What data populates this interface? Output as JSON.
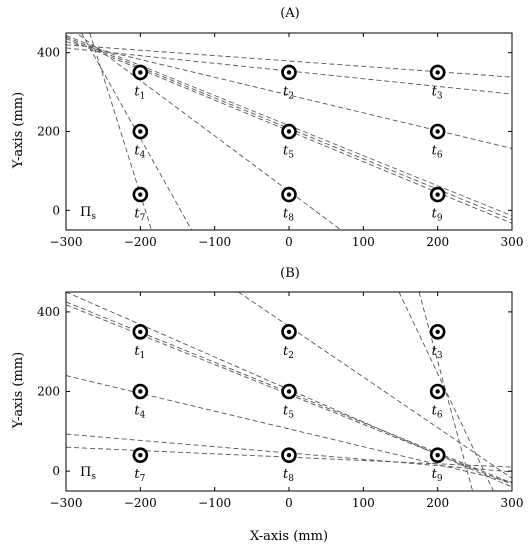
{
  "chart_data": [
    {
      "type": "line",
      "title": "(A)",
      "xlabel": "",
      "ylabel": "Y-axis (mm)",
      "xlim": [
        -300,
        300
      ],
      "ylim": [
        -50,
        450
      ],
      "xticks": [
        -300,
        -200,
        -100,
        0,
        100,
        200,
        300
      ],
      "yticks": [
        0,
        200,
        400
      ],
      "xtick_labels": [
        "−300",
        "−200",
        "−100",
        "0",
        "100",
        "200",
        "300"
      ],
      "ytick_labels": [
        "0",
        "200",
        "400"
      ],
      "show_xtick_labels": true,
      "plane_label": "Π",
      "plane_sub": "s",
      "targets": [
        {
          "base": "t",
          "sub": "1",
          "x": -200,
          "y": 350
        },
        {
          "base": "t",
          "sub": "2",
          "x": 0,
          "y": 350
        },
        {
          "base": "t",
          "sub": "3",
          "x": 200,
          "y": 350
        },
        {
          "base": "t",
          "sub": "4",
          "x": -200,
          "y": 200
        },
        {
          "base": "t",
          "sub": "5",
          "x": 0,
          "y": 200
        },
        {
          "base": "t",
          "sub": "6",
          "x": 200,
          "y": 200
        },
        {
          "base": "t",
          "sub": "7",
          "x": -200,
          "y": 40
        },
        {
          "base": "t",
          "sub": "8",
          "x": 0,
          "y": 40
        },
        {
          "base": "t",
          "sub": "9",
          "x": 200,
          "y": 40
        }
      ],
      "rays": [
        {
          "x1": -300,
          "y1": 420,
          "x2": 300,
          "y2": 338
        },
        {
          "x1": -300,
          "y1": 412,
          "x2": 300,
          "y2": 295
        },
        {
          "x1": -300,
          "y1": 428,
          "x2": 300,
          "y2": 157
        },
        {
          "x1": -300,
          "y1": 440,
          "x2": 300,
          "y2": -24
        },
        {
          "x1": -300,
          "y1": 436,
          "x2": 300,
          "y2": -33
        },
        {
          "x1": -300,
          "y1": 444,
          "x2": 300,
          "y2": -14
        },
        {
          "x1": -300,
          "y1": 470,
          "x2": 70,
          "y2": -50
        },
        {
          "x1": -300,
          "y1": 520,
          "x2": -131,
          "y2": -50
        },
        {
          "x1": -268,
          "y1": 450,
          "x2": -185,
          "y2": -50
        }
      ]
    },
    {
      "type": "line",
      "title": "(B)",
      "xlabel": "X-axis (mm)",
      "ylabel": "Y-axis (mm)",
      "xlim": [
        -300,
        300
      ],
      "ylim": [
        -50,
        450
      ],
      "xticks": [
        -300,
        -200,
        -100,
        0,
        100,
        200,
        300
      ],
      "yticks": [
        0,
        200,
        400
      ],
      "xtick_labels": [
        "−300",
        "−200",
        "−100",
        "0",
        "100",
        "200",
        "300"
      ],
      "ytick_labels": [
        "0",
        "200",
        "400"
      ],
      "show_xtick_labels": true,
      "plane_label": "Π",
      "plane_sub": "s",
      "targets": [
        {
          "base": "t",
          "sub": "1",
          "x": -200,
          "y": 350
        },
        {
          "base": "t",
          "sub": "2",
          "x": 0,
          "y": 350
        },
        {
          "base": "t",
          "sub": "3",
          "x": 200,
          "y": 350
        },
        {
          "base": "t",
          "sub": "4",
          "x": -200,
          "y": 200
        },
        {
          "base": "t",
          "sub": "5",
          "x": 0,
          "y": 200
        },
        {
          "base": "t",
          "sub": "6",
          "x": 200,
          "y": 200
        },
        {
          "base": "t",
          "sub": "7",
          "x": -200,
          "y": 40
        },
        {
          "base": "t",
          "sub": "8",
          "x": 0,
          "y": 40
        },
        {
          "base": "t",
          "sub": "9",
          "x": 200,
          "y": 40
        }
      ],
      "rays": [
        {
          "x1": -300,
          "y1": 60,
          "x2": 300,
          "y2": 10
        },
        {
          "x1": -300,
          "y1": 93,
          "x2": 300,
          "y2": -2
        },
        {
          "x1": -300,
          "y1": 240,
          "x2": 300,
          "y2": -28
        },
        {
          "x1": -300,
          "y1": 418,
          "x2": 300,
          "y2": -33
        },
        {
          "x1": -300,
          "y1": 425,
          "x2": 300,
          "y2": -30
        },
        {
          "x1": -300,
          "y1": 450,
          "x2": 300,
          "y2": -40
        },
        {
          "x1": -68,
          "y1": 450,
          "x2": 300,
          "y2": -18
        },
        {
          "x1": 148,
          "y1": 450,
          "x2": 275,
          "y2": -50
        },
        {
          "x1": 175,
          "y1": 450,
          "x2": 247,
          "y2": -50
        }
      ]
    }
  ]
}
